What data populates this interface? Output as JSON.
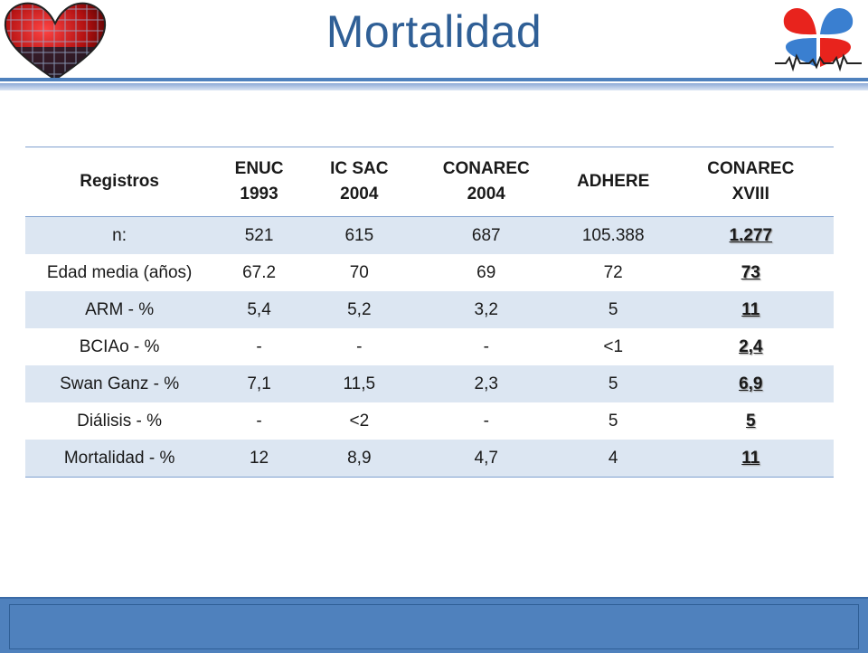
{
  "slide": {
    "title": "Mortalidad"
  },
  "table": {
    "headers": [
      "Registros",
      "ENUC 1993",
      "IC SAC 2004",
      "CONAREC 2004",
      "ADHERE",
      "CONAREC XVIII"
    ],
    "rows": [
      [
        "n:",
        "521",
        "615",
        "687",
        "105.388",
        "1.277"
      ],
      [
        "Edad media (años)",
        "67.2",
        "70",
        "69",
        "72",
        "73"
      ],
      [
        "ARM - %",
        "5,4",
        "5,2",
        "3,2",
        "5",
        "11"
      ],
      [
        "BCIAo - %",
        "-",
        "-",
        "-",
        "<1",
        "2,4"
      ],
      [
        "Swan Ganz - %",
        "7,1",
        "11,5",
        "2,3",
        "5",
        "6,9"
      ],
      [
        "Diálisis - %",
        "-",
        "<2",
        "-",
        "5",
        "5"
      ],
      [
        "Mortalidad - %",
        "12",
        "8,9",
        "4,7",
        "4",
        "11"
      ]
    ]
  },
  "colors": {
    "accent": "#4f81bd",
    "title": "#2f5f96",
    "row_band": "#dce6f2",
    "heart_red": "#e8231d"
  }
}
